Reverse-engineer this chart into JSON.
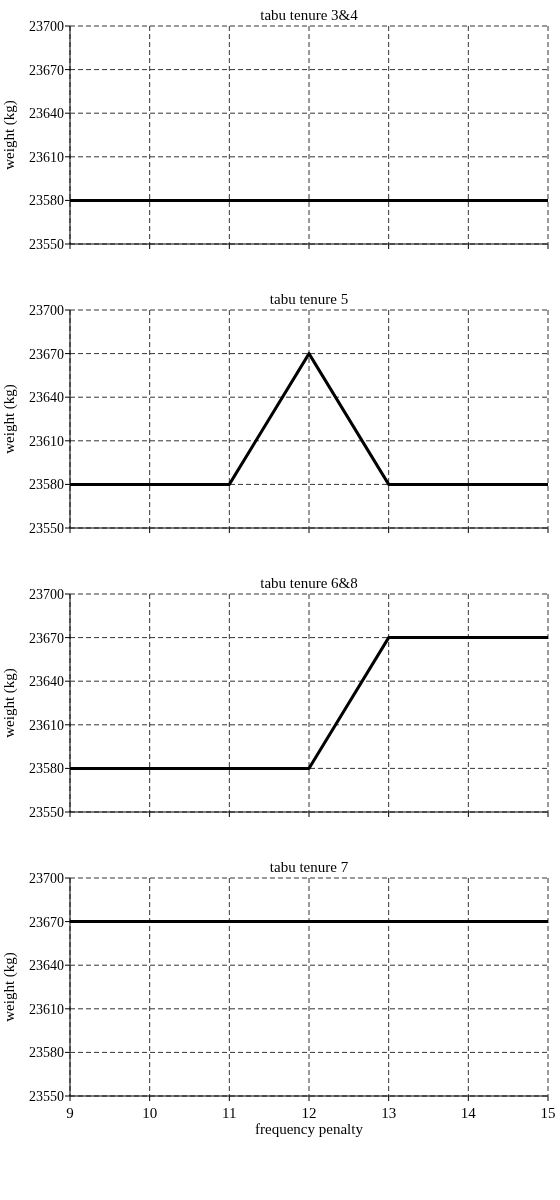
{
  "chart_data": [
    {
      "type": "line",
      "title": "tabu tenure 3&4",
      "ylabel": "weight (kg)",
      "xlim": [
        9,
        15
      ],
      "xticks": [
        9,
        10,
        11,
        12,
        13,
        14,
        15
      ],
      "ylim": [
        23550,
        23700
      ],
      "yticks": [
        23550,
        23580,
        23610,
        23640,
        23670,
        23700
      ],
      "grid": true,
      "tick_labels": "y",
      "line_style": "solid",
      "marker": "none",
      "series": [
        {
          "color": "#000000",
          "x": [
            9,
            15
          ],
          "values": [
            23580,
            23580
          ]
        }
      ]
    },
    {
      "type": "line",
      "title": "tabu tenure 5",
      "ylabel": "weight (kg)",
      "xlim": [
        9,
        15
      ],
      "xticks": [
        9,
        10,
        11,
        12,
        13,
        14,
        15
      ],
      "ylim": [
        23550,
        23700
      ],
      "yticks": [
        23550,
        23580,
        23610,
        23640,
        23670,
        23700
      ],
      "grid": true,
      "tick_labels": "y",
      "line_style": "solid",
      "marker": "none",
      "series": [
        {
          "color": "#000000",
          "x": [
            9,
            11,
            12,
            13,
            15
          ],
          "values": [
            23580,
            23580,
            23670,
            23580,
            23580
          ]
        }
      ]
    },
    {
      "type": "line",
      "title": "tabu tenure 6&8",
      "ylabel": "weight (kg)",
      "xlim": [
        9,
        15
      ],
      "xticks": [
        9,
        10,
        11,
        12,
        13,
        14,
        15
      ],
      "ylim": [
        23550,
        23700
      ],
      "yticks": [
        23550,
        23580,
        23610,
        23640,
        23670,
        23700
      ],
      "grid": true,
      "tick_labels": "y",
      "line_style": "solid",
      "marker": "none",
      "series": [
        {
          "color": "#000000",
          "x": [
            9,
            12,
            13,
            15
          ],
          "values": [
            23580,
            23580,
            23670,
            23670
          ]
        }
      ]
    },
    {
      "type": "line",
      "title": "tabu tenure 7",
      "ylabel": "weight (kg)",
      "xlabel": "frequency penalty",
      "xlim": [
        9,
        15
      ],
      "xticks": [
        9,
        10,
        11,
        12,
        13,
        14,
        15
      ],
      "ylim": [
        23550,
        23700
      ],
      "yticks": [
        23550,
        23580,
        23610,
        23640,
        23670,
        23700
      ],
      "grid": true,
      "line_style": "solid",
      "marker": "none",
      "series": [
        {
          "color": "#000000",
          "x": [
            9,
            15
          ],
          "values": [
            23670,
            23670
          ]
        }
      ]
    }
  ]
}
